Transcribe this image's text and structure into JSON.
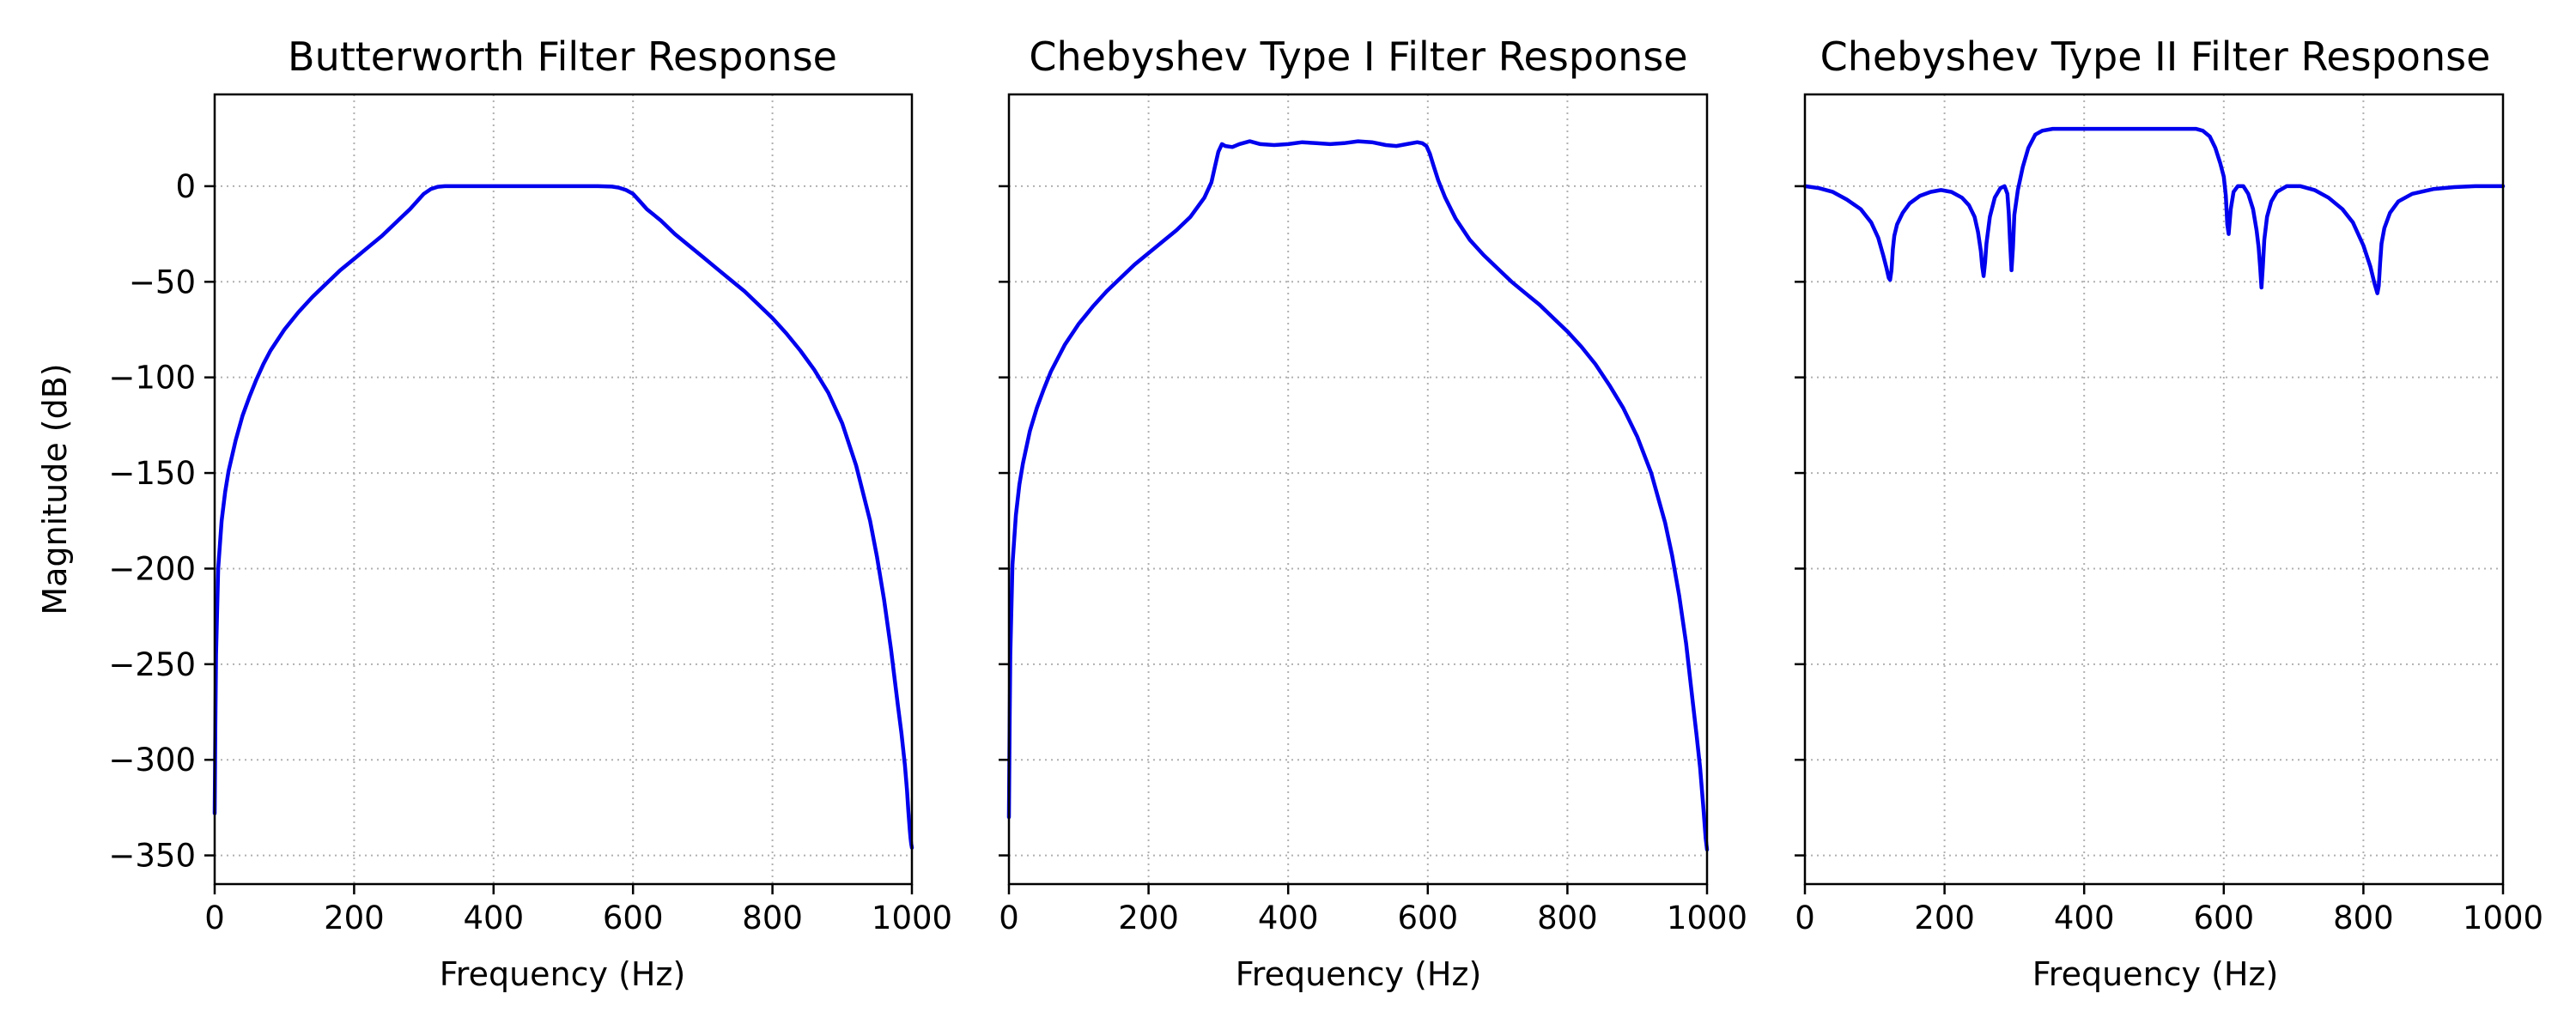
{
  "chart_data": [
    {
      "type": "line",
      "title": "Butterworth Filter Response",
      "xlabel": "Frequency (Hz)",
      "ylabel": "Magnitude (dB)",
      "xlim": [
        0,
        1000
      ],
      "ylim": [
        -365,
        48
      ],
      "xticks": [
        0,
        200,
        400,
        600,
        800,
        1000
      ],
      "xtick_labels": [
        "0",
        "200",
        "400",
        "600",
        "800",
        "1000"
      ],
      "yticks": [
        0,
        -50,
        -100,
        -150,
        -200,
        -250,
        -300,
        -350
      ],
      "ytick_labels": [
        "0",
        "−50",
        "−100",
        "−150",
        "−200",
        "−250",
        "−300",
        "−350"
      ],
      "show_y_tick_labels": true,
      "grid": true,
      "color": "#0000ee",
      "series": [
        {
          "x": [
            0,
            1,
            2,
            5,
            10,
            15,
            20,
            30,
            40,
            50,
            60,
            70,
            80,
            100,
            120,
            140,
            160,
            180,
            200,
            220,
            240,
            260,
            280,
            300,
            310,
            320,
            330,
            350,
            400,
            450,
            500,
            550,
            570,
            580,
            590,
            600,
            610,
            620,
            640,
            660,
            680,
            700,
            720,
            740,
            760,
            780,
            800,
            820,
            840,
            860,
            880,
            900,
            920,
            940,
            950,
            960,
            970,
            980,
            985,
            990,
            993,
            995,
            997,
            998,
            999,
            1000
          ],
          "y": [
            -328,
            -282,
            -245,
            -200,
            -175,
            -160,
            -149,
            -133,
            -120,
            -110,
            -101,
            -93,
            -86,
            -75,
            -66,
            -58,
            -51,
            -44,
            -38,
            -32,
            -26,
            -19,
            -12,
            -4,
            -1.5,
            -0.3,
            0,
            0,
            0,
            0,
            0,
            0,
            -0.2,
            -0.8,
            -2,
            -4,
            -8,
            -12,
            -18,
            -25,
            -31,
            -37,
            -43,
            -49,
            -55,
            -62,
            -69,
            -77,
            -86,
            -96,
            -108,
            -124,
            -146,
            -175,
            -194,
            -216,
            -242,
            -272,
            -286,
            -303,
            -316,
            -327,
            -337,
            -341,
            -344,
            -346
          ]
        }
      ]
    },
    {
      "type": "line",
      "title": "Chebyshev Type I Filter Response",
      "xlabel": "Frequency (Hz)",
      "ylabel": "",
      "xlim": [
        0,
        1000
      ],
      "ylim": [
        -365,
        48
      ],
      "xticks": [
        0,
        200,
        400,
        600,
        800,
        1000
      ],
      "xtick_labels": [
        "0",
        "200",
        "400",
        "600",
        "800",
        "1000"
      ],
      "yticks": [
        0,
        -50,
        -100,
        -150,
        -200,
        -250,
        -300,
        -350
      ],
      "ytick_labels": [
        "0",
        "−50",
        "−100",
        "−150",
        "−200",
        "−250",
        "−300",
        "−350"
      ],
      "show_y_tick_labels": false,
      "grid": true,
      "color": "#0000ee",
      "series": [
        {
          "x": [
            0,
            1,
            2,
            5,
            10,
            15,
            20,
            30,
            40,
            50,
            60,
            70,
            80,
            100,
            120,
            140,
            160,
            180,
            200,
            220,
            240,
            260,
            280,
            290,
            295,
            300,
            305,
            310,
            320,
            330,
            345,
            360,
            380,
            400,
            420,
            440,
            460,
            480,
            500,
            520,
            540,
            555,
            570,
            585,
            592,
            598,
            603,
            608,
            615,
            625,
            640,
            660,
            680,
            700,
            720,
            740,
            760,
            780,
            800,
            820,
            840,
            860,
            880,
            900,
            920,
            940,
            950,
            960,
            970,
            980,
            985,
            990,
            995,
            998,
            1000
          ],
          "y": [
            -330,
            -282,
            -245,
            -198,
            -172,
            -156,
            -145,
            -128,
            -116,
            -106,
            -97,
            -90,
            -83,
            -72,
            -63,
            -55,
            -48,
            -41,
            -35,
            -29,
            -23,
            -16,
            -6,
            2,
            10,
            18,
            22,
            21,
            20.5,
            22,
            23.5,
            22,
            21.5,
            22,
            23,
            22.5,
            22,
            22.5,
            23.5,
            23,
            21.5,
            21,
            22,
            23,
            22.5,
            21,
            17,
            11,
            3,
            -6,
            -17,
            -28,
            -36,
            -43,
            -50,
            -56,
            -62,
            -69,
            -76,
            -84,
            -93,
            -104,
            -116,
            -131,
            -150,
            -176,
            -193,
            -214,
            -239,
            -271,
            -287,
            -304,
            -326,
            -341,
            -347
          ]
        }
      ]
    },
    {
      "type": "line",
      "title": "Chebyshev Type II Filter Response",
      "xlabel": "Frequency (Hz)",
      "ylabel": "",
      "xlim": [
        0,
        1000
      ],
      "ylim": [
        -365,
        48
      ],
      "xticks": [
        0,
        200,
        400,
        600,
        800,
        1000
      ],
      "xtick_labels": [
        "0",
        "200",
        "400",
        "600",
        "800",
        "1000"
      ],
      "yticks": [
        0,
        -50,
        -100,
        -150,
        -200,
        -250,
        -300,
        -350
      ],
      "ytick_labels": [
        "0",
        "−50",
        "−100",
        "−150",
        "−200",
        "−250",
        "−300",
        "−350"
      ],
      "show_y_tick_labels": false,
      "grid": true,
      "color": "#0000ee",
      "series": [
        {
          "x": [
            0,
            20,
            40,
            60,
            80,
            95,
            105,
            112,
            117,
            120,
            122,
            124,
            126,
            128,
            132,
            140,
            150,
            165,
            180,
            195,
            210,
            225,
            235,
            243,
            248,
            252,
            254,
            256,
            258,
            260,
            265,
            272,
            280,
            286,
            290,
            292,
            294,
            296,
            298,
            300,
            305,
            312,
            320,
            330,
            340,
            355,
            380,
            420,
            460,
            500,
            540,
            560,
            570,
            580,
            588,
            595,
            600,
            603,
            605,
            607,
            610,
            614,
            620,
            628,
            635,
            642,
            647,
            650,
            652,
            654,
            656,
            658,
            662,
            668,
            676,
            690,
            710,
            730,
            750,
            770,
            785,
            800,
            810,
            816,
            820,
            822,
            824,
            826,
            830,
            838,
            850,
            870,
            900,
            930,
            960,
            1000
          ],
          "y": [
            0,
            -1,
            -3,
            -7,
            -12,
            -19,
            -27,
            -36,
            -43,
            -48,
            -49,
            -44,
            -33,
            -26,
            -20,
            -14,
            -9,
            -5,
            -3,
            -2,
            -3,
            -6,
            -10,
            -16,
            -24,
            -34,
            -42,
            -47,
            -40,
            -30,
            -16,
            -6,
            -1,
            0,
            -4,
            -14,
            -30,
            -44,
            -32,
            -15,
            -2,
            10,
            20,
            27,
            29,
            30,
            30,
            30,
            30,
            30,
            30,
            30,
            29,
            26,
            20,
            12,
            5,
            -5,
            -20,
            -25,
            -12,
            -3,
            0,
            0,
            -4,
            -12,
            -23,
            -32,
            -42,
            -53,
            -42,
            -28,
            -16,
            -8,
            -3,
            0,
            0,
            -2,
            -6,
            -12,
            -19,
            -31,
            -42,
            -51,
            -56,
            -52,
            -40,
            -30,
            -22,
            -14,
            -8,
            -4,
            -1.5,
            -0.5,
            0,
            0
          ]
        }
      ]
    }
  ]
}
